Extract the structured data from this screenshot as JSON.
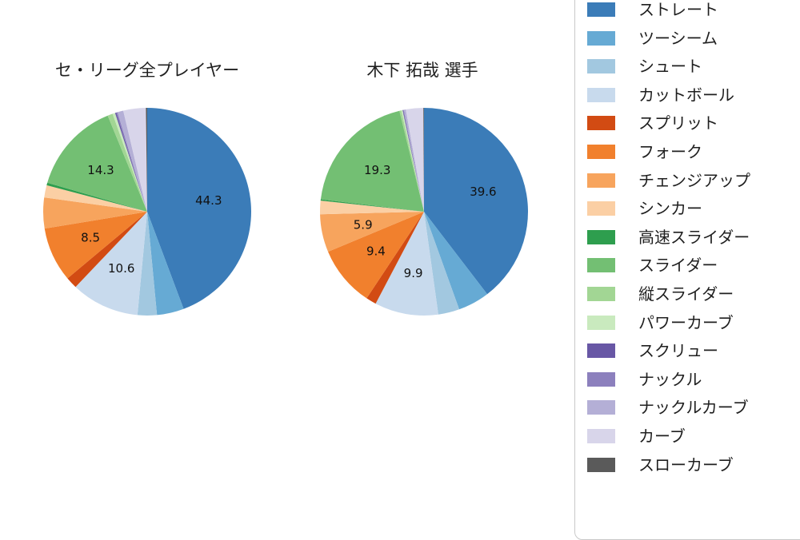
{
  "page": {
    "background": "#ffffff"
  },
  "chart_data": [
    {
      "type": "pie",
      "title": "セ・リーグ全プレイヤー",
      "categories": [
        "ストレート",
        "ツーシーム",
        "シュート",
        "カットボール",
        "スプリット",
        "フォーク",
        "チェンジアップ",
        "シンカー",
        "高速スライダー",
        "スライダー",
        "縦スライダー",
        "パワーカーブ",
        "スクリュー",
        "ナックル",
        "ナックルカーブ",
        "カーブ",
        "スローカーブ"
      ],
      "values": [
        44.3,
        4.2,
        3.0,
        10.6,
        1.8,
        8.5,
        4.8,
        1.9,
        0.4,
        14.3,
        0.8,
        0.4,
        0.2,
        0.2,
        0.9,
        3.5,
        0.2
      ],
      "visible_data_labels": [
        "44.3",
        "10.6",
        "8.5",
        "14.3"
      ],
      "label_min": 5,
      "start_angle": "top",
      "direction": "clockwise",
      "unit": "%"
    },
    {
      "type": "pie",
      "title": "木下 拓哉 選手",
      "categories": [
        "ストレート",
        "ツーシーム",
        "シュート",
        "カットボール",
        "スプリット",
        "フォーク",
        "チェンジアップ",
        "シンカー",
        "高速スライダー",
        "スライダー",
        "縦スライダー",
        "パワーカーブ",
        "スクリュー",
        "ナックル",
        "ナックルカーブ",
        "カーブ",
        "スローカーブ"
      ],
      "values": [
        39.6,
        4.9,
        3.3,
        9.9,
        1.6,
        9.4,
        5.9,
        2.1,
        0.2,
        19.3,
        0.3,
        0.2,
        0.1,
        0.1,
        0.3,
        2.7,
        0.1
      ],
      "visible_data_labels": [
        "39.6",
        "9.9",
        "9.4",
        "5.9",
        "19.3"
      ],
      "label_min": 5,
      "start_angle": "top",
      "direction": "clockwise",
      "unit": "%"
    }
  ],
  "legend": {
    "items": [
      {
        "label": "ストレート",
        "color": "#3b7cb8"
      },
      {
        "label": "ツーシーム",
        "color": "#66aad4"
      },
      {
        "label": "シュート",
        "color": "#a2c8e0"
      },
      {
        "label": "カットボール",
        "color": "#c8daed"
      },
      {
        "label": "スプリット",
        "color": "#d24b13"
      },
      {
        "label": "フォーク",
        "color": "#f1802d"
      },
      {
        "label": "チェンジアップ",
        "color": "#f7a45d"
      },
      {
        "label": "シンカー",
        "color": "#fbcfa4"
      },
      {
        "label": "高速スライダー",
        "color": "#2e9e4e"
      },
      {
        "label": "スライダー",
        "color": "#73bf73"
      },
      {
        "label": "縦スライダー",
        "color": "#a2d694"
      },
      {
        "label": "パワーカーブ",
        "color": "#c9eabe"
      },
      {
        "label": "スクリュー",
        "color": "#6857a5"
      },
      {
        "label": "ナックル",
        "color": "#8c80bd"
      },
      {
        "label": "ナックルカーブ",
        "color": "#b4afd6"
      },
      {
        "label": "カーブ",
        "color": "#d8d5ea"
      },
      {
        "label": "スローカーブ",
        "color": "#5a5a5a"
      }
    ],
    "border_color": "#c9c9c9"
  }
}
